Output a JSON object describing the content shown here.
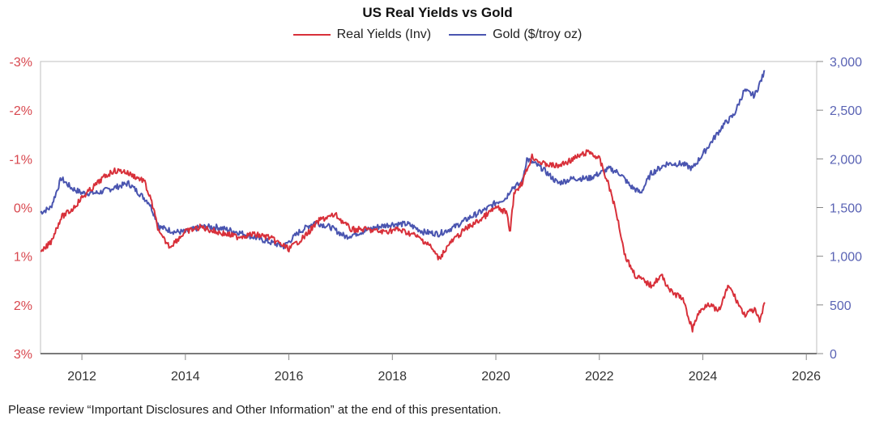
{
  "chart_data": {
    "type": "line",
    "title": "US Real Yields vs Gold",
    "legend_position": "top-center",
    "grid": false,
    "colors": {
      "real_yields": "#d8303a",
      "gold": "#4a55b0",
      "left_axis": "#d8474e",
      "right_axis": "#5a63b4"
    },
    "x_ticks": [
      "2012",
      "2014",
      "2016",
      "2018",
      "2020",
      "2022",
      "2024",
      "2026"
    ],
    "xlim": [
      2011.2,
      2026.2
    ],
    "left_axis": {
      "ticks": [
        "-3%",
        "-2%",
        "-1%",
        "0%",
        "1%",
        "2%",
        "3%"
      ],
      "ylim": [
        -3,
        3
      ],
      "inverted": true,
      "unit": "%"
    },
    "right_axis": {
      "ticks": [
        "3,000",
        "2,500",
        "2,000",
        "1,500",
        "1,000",
        "500",
        "0"
      ],
      "ylim": [
        0,
        3000
      ],
      "unit": "$/troy oz"
    },
    "series": [
      {
        "name": "Real Yields (Inv)",
        "axis": "left",
        "x": [
          2011.2,
          2011.4,
          2011.6,
          2011.8,
          2012.0,
          2012.2,
          2012.4,
          2012.6,
          2012.8,
          2013.0,
          2013.2,
          2013.35,
          2013.5,
          2013.7,
          2014.0,
          2014.3,
          2014.6,
          2015.0,
          2015.3,
          2015.6,
          2016.0,
          2016.3,
          2016.6,
          2016.9,
          2017.2,
          2017.5,
          2017.8,
          2018.1,
          2018.4,
          2018.7,
          2018.9,
          2019.1,
          2019.4,
          2019.7,
          2020.0,
          2020.2,
          2020.28,
          2020.35,
          2020.5,
          2020.7,
          2020.9,
          2021.2,
          2021.5,
          2021.8,
          2022.0,
          2022.2,
          2022.35,
          2022.5,
          2022.7,
          2022.85,
          2023.0,
          2023.2,
          2023.4,
          2023.6,
          2023.8,
          2023.9,
          2024.1,
          2024.3,
          2024.5,
          2024.8,
          2025.0,
          2025.1,
          2025.2
        ],
        "values": [
          0.95,
          0.7,
          0.2,
          0.05,
          -0.2,
          -0.4,
          -0.6,
          -0.75,
          -0.75,
          -0.65,
          -0.55,
          -0.1,
          0.55,
          0.8,
          0.5,
          0.4,
          0.5,
          0.6,
          0.55,
          0.6,
          0.85,
          0.6,
          0.25,
          0.15,
          0.45,
          0.45,
          0.5,
          0.45,
          0.55,
          0.75,
          1.05,
          0.75,
          0.45,
          0.25,
          0.0,
          0.1,
          0.5,
          -0.3,
          -0.5,
          -1.05,
          -0.9,
          -0.85,
          -1.0,
          -1.15,
          -1.0,
          -0.4,
          0.2,
          1.0,
          1.4,
          1.5,
          1.6,
          1.4,
          1.75,
          1.85,
          2.5,
          2.2,
          1.95,
          2.15,
          1.6,
          2.2,
          2.1,
          2.35,
          1.95
        ]
      },
      {
        "name": "Gold ($/troy oz)",
        "axis": "right",
        "x": [
          2011.2,
          2011.4,
          2011.6,
          2011.8,
          2012.0,
          2012.3,
          2012.6,
          2012.9,
          2013.1,
          2013.3,
          2013.5,
          2013.8,
          2014.0,
          2014.3,
          2014.6,
          2015.0,
          2015.3,
          2015.6,
          2015.9,
          2016.2,
          2016.5,
          2016.8,
          2017.1,
          2017.4,
          2017.7,
          2018.0,
          2018.3,
          2018.6,
          2018.9,
          2019.2,
          2019.5,
          2019.8,
          2020.0,
          2020.2,
          2020.3,
          2020.5,
          2020.6,
          2020.9,
          2021.2,
          2021.5,
          2021.8,
          2022.0,
          2022.2,
          2022.4,
          2022.6,
          2022.8,
          2023.0,
          2023.3,
          2023.6,
          2023.8,
          2024.0,
          2024.2,
          2024.4,
          2024.6,
          2024.8,
          2025.0,
          2025.2
        ],
        "values": [
          1450,
          1500,
          1800,
          1700,
          1650,
          1650,
          1700,
          1750,
          1650,
          1550,
          1300,
          1250,
          1250,
          1300,
          1300,
          1250,
          1200,
          1150,
          1100,
          1250,
          1350,
          1300,
          1200,
          1250,
          1300,
          1330,
          1330,
          1250,
          1230,
          1300,
          1400,
          1480,
          1550,
          1600,
          1700,
          1750,
          2000,
          1900,
          1750,
          1800,
          1800,
          1850,
          1900,
          1850,
          1720,
          1650,
          1850,
          1950,
          1950,
          1900,
          2050,
          2200,
          2350,
          2450,
          2700,
          2650,
          2900
        ]
      }
    ]
  },
  "footnote": "Please review “Important Disclosures and Other Information” at the end of this presentation."
}
